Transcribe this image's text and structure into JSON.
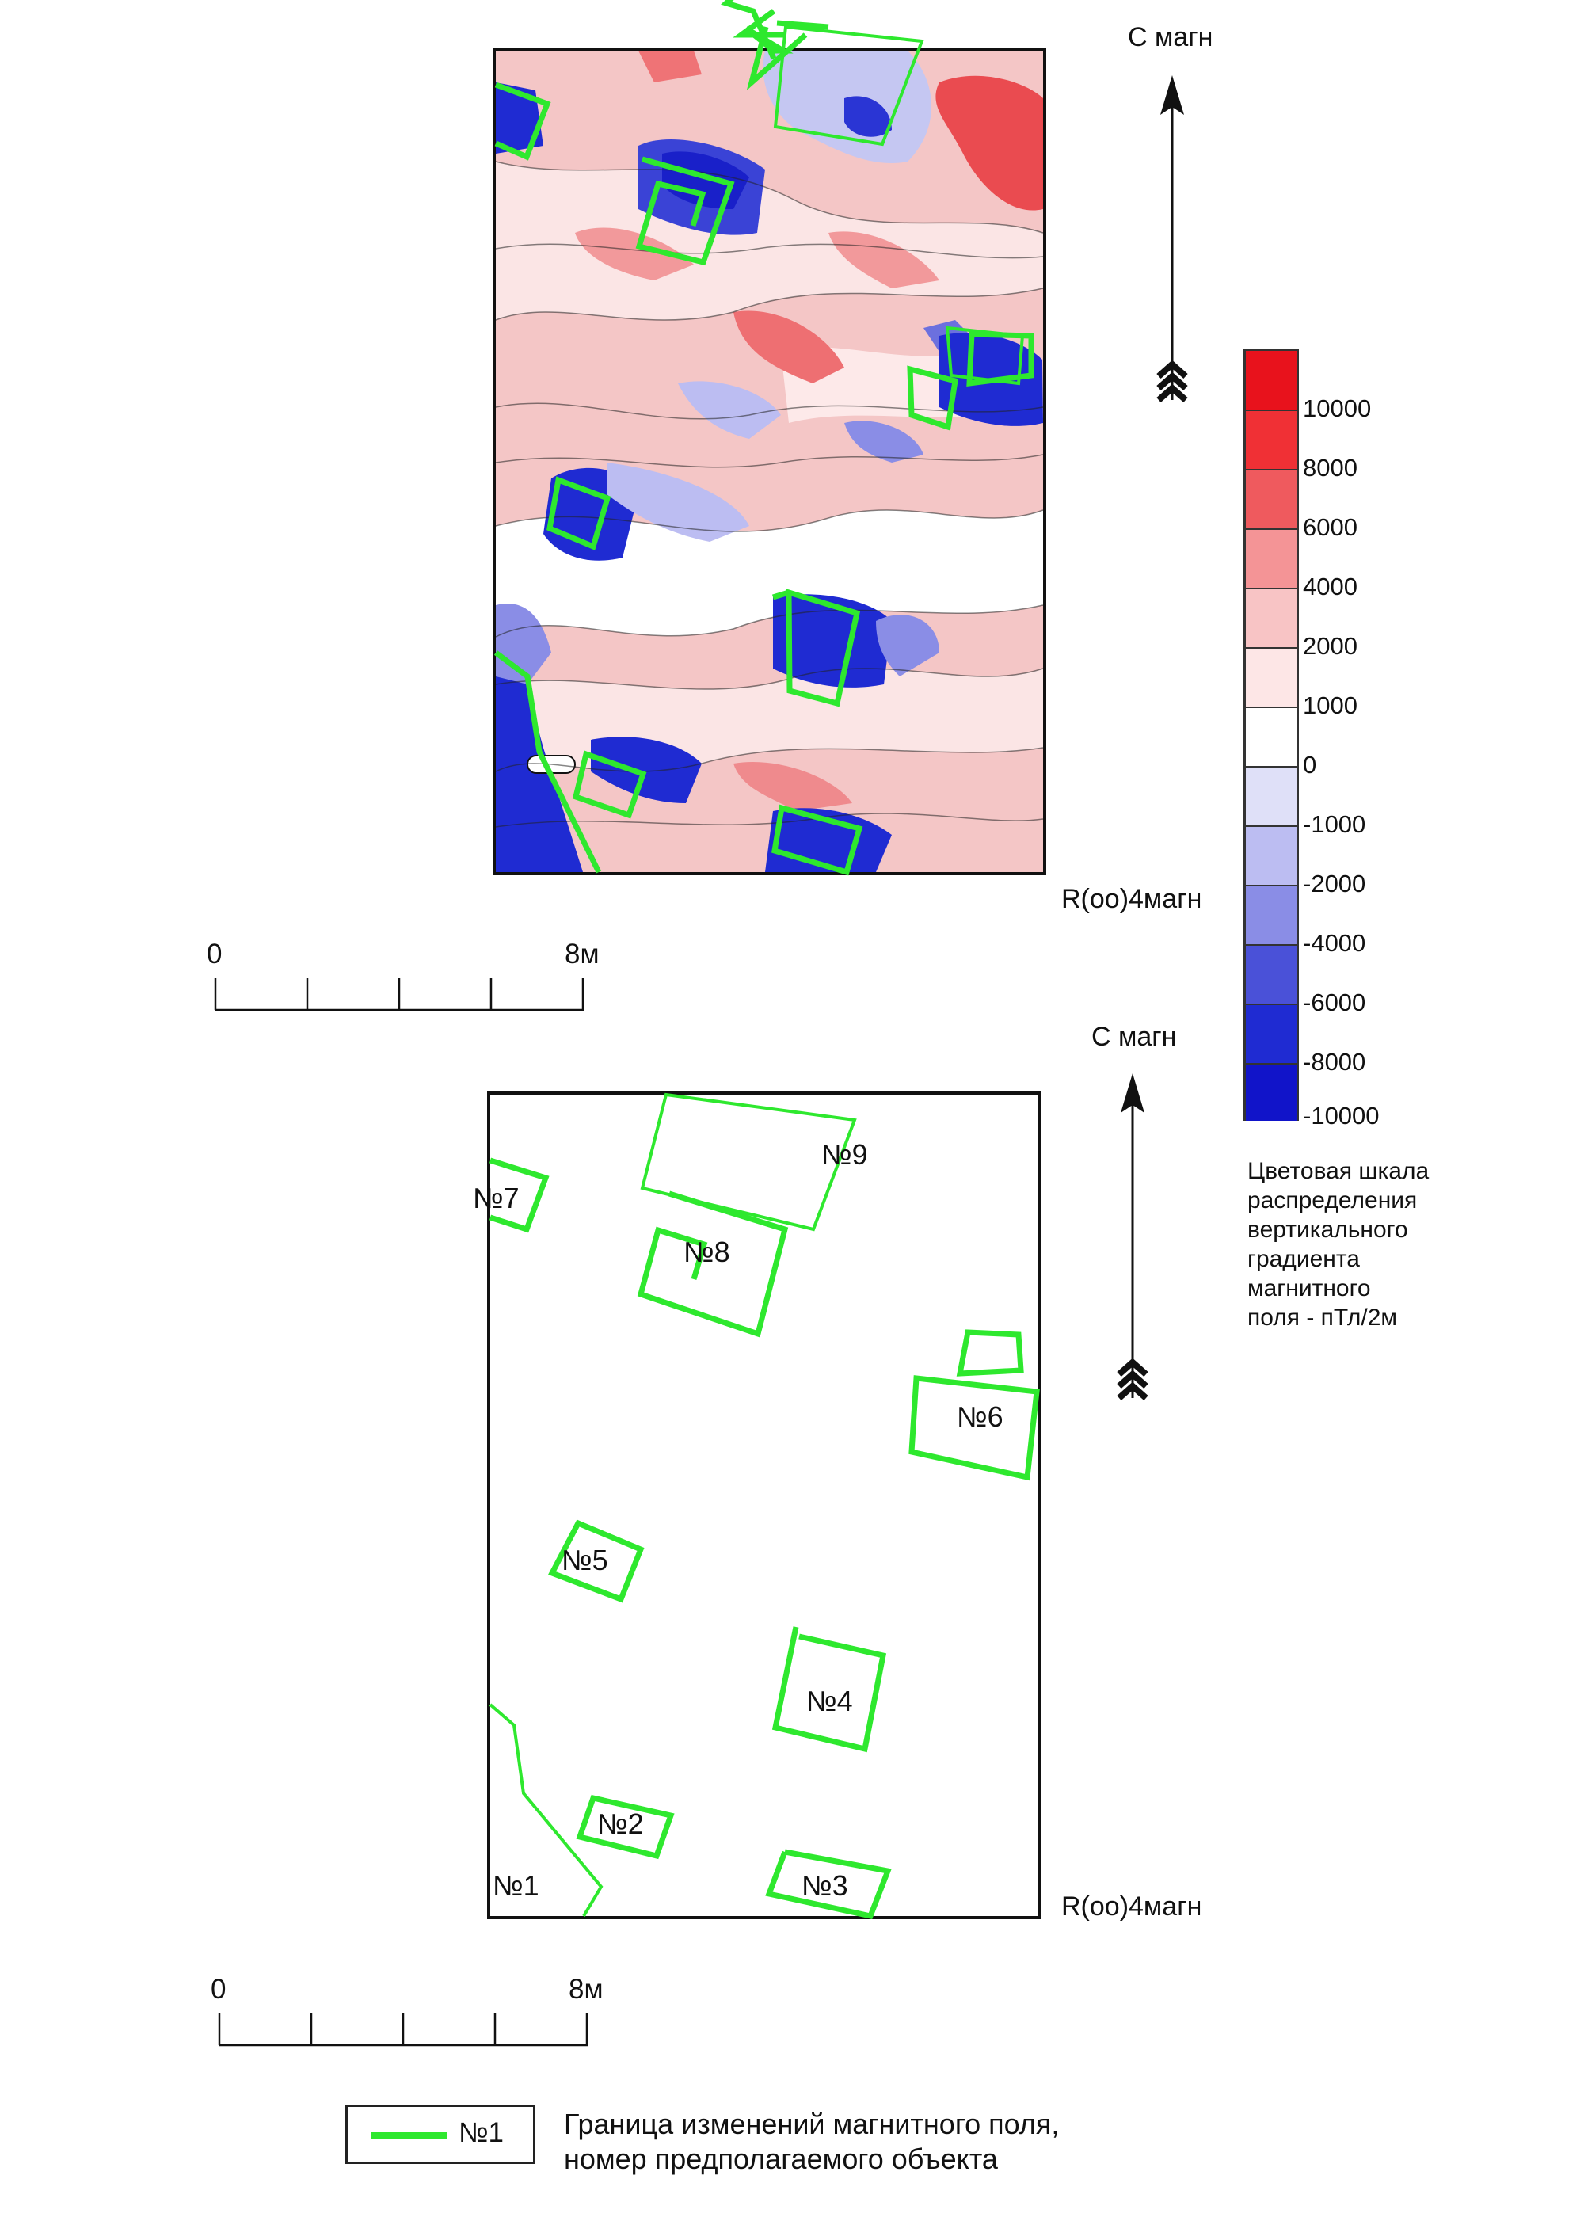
{
  "north_label": "С магн",
  "map_label": "R(oo)4магн",
  "scale_bar": {
    "start": "0",
    "end": "8м"
  },
  "colorbar": {
    "ticks": [
      "10000",
      "8000",
      "6000",
      "4000",
      "2000",
      "1000",
      "0",
      "-1000",
      "-2000",
      "-4000",
      "-6000",
      "-8000",
      "-10000"
    ],
    "colors": [
      "#e8121c",
      "#f03035",
      "#ef5a5e",
      "#f49496",
      "#f8c4c5",
      "#fde6e6",
      "#ffffff",
      "#dfe0f8",
      "#bcbdf2",
      "#8a8de6",
      "#4a51d8",
      "#1f2bd2",
      "#1114c9"
    ],
    "caption": "Цветовая шкала\nраспределения\nвертикального\nградиента\nмагнитного\nполя - пТл/2м"
  },
  "objects": [
    {
      "id": "1",
      "label": "№1"
    },
    {
      "id": "2",
      "label": "№2"
    },
    {
      "id": "3",
      "label": "№3"
    },
    {
      "id": "4",
      "label": "№4"
    },
    {
      "id": "5",
      "label": "№5"
    },
    {
      "id": "6",
      "label": "№6"
    },
    {
      "id": "7",
      "label": "№7"
    },
    {
      "id": "8",
      "label": "№8"
    },
    {
      "id": "9",
      "label": "№9"
    }
  ],
  "legend": {
    "sample_label": "№1",
    "text": "Граница изменений магнитного поля,\nномер предполагаемого объекта",
    "line_color": "#2ee82e"
  }
}
